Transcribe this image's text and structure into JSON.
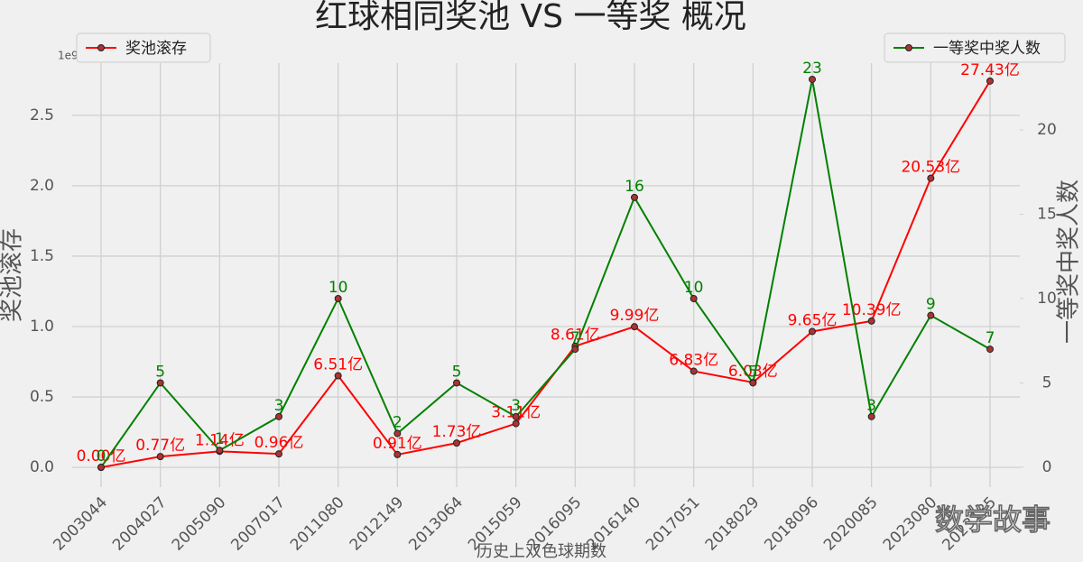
{
  "chart_data": {
    "type": "line",
    "title": "红球相同奖池 VS 一等奖 概况",
    "x_label": "历史上双色球期数",
    "y_label": "奖池滚存",
    "y2_label": "一等奖中奖人数",
    "y_offset_label": "1e9",
    "watermark": "数学故事",
    "categories": [
      "2003044",
      "2004027",
      "2005090",
      "2007017",
      "2011080",
      "2012149",
      "2013064",
      "2015059",
      "2016095",
      "2016140",
      "2017051",
      "2018029",
      "2018096",
      "2020085",
      "2023080",
      "2023135"
    ],
    "series": [
      {
        "name": "奖池滚存",
        "color": "#ff0000",
        "legend_loc": "upper left",
        "values": [
          0,
          0.077,
          0.114,
          0.096,
          0.651,
          0.091,
          0.173,
          0.311,
          0.861,
          0.999,
          0.683,
          0.603,
          0.965,
          1.039,
          2.053,
          2.743
        ],
        "value_labels": [
          "0.00亿",
          "0.77亿",
          "1.14亿",
          "0.96亿",
          "6.51亿",
          "0.91亿",
          "1.73亿",
          "3.11亿",
          "8.61亿",
          "9.99亿",
          "6.83亿",
          "6.03亿",
          "9.65亿",
          "10.39亿",
          "20.53亿",
          "27.43亿"
        ]
      },
      {
        "name": "一等奖中奖人数",
        "color": "#008000",
        "axis": "y2",
        "legend_loc": "upper right",
        "values": [
          0,
          5,
          1,
          3,
          10,
          2,
          5,
          3,
          7,
          16,
          10,
          5,
          23,
          3,
          9,
          7
        ]
      }
    ],
    "ylim": [
      -0.14,
      2.87
    ],
    "yticks": [
      0.0,
      0.5,
      1.0,
      1.5,
      2.0,
      2.5
    ],
    "y2lim": [
      -1.18,
      23.96
    ],
    "y2ticks": [
      0,
      5,
      10,
      15,
      20
    ],
    "grid": true
  }
}
